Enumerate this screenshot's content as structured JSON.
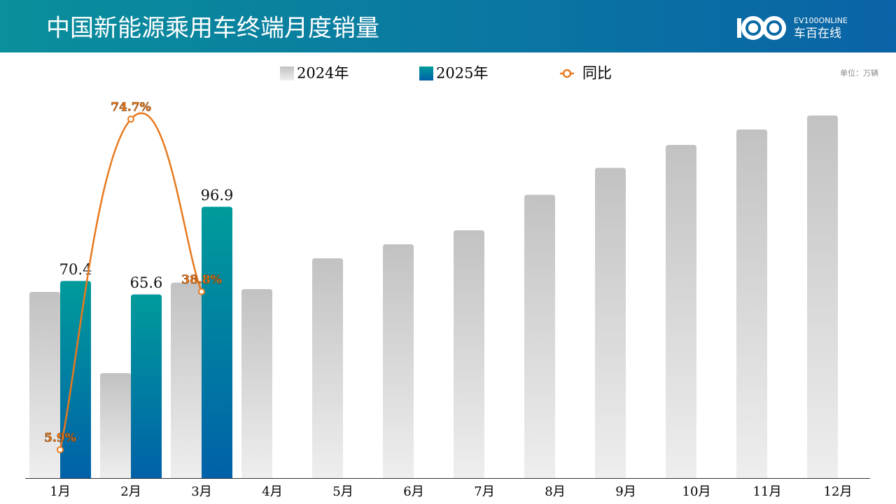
{
  "chart_data": {
    "type": "bar",
    "title": "中国新能源乘用车终端月度销量",
    "unit": "单位：万辆",
    "brand": {
      "en": "EV100ONLINE",
      "cn": "车百在线"
    },
    "categories": [
      "1月",
      "2月",
      "3月",
      "4月",
      "5月",
      "6月",
      "7月",
      "8月",
      "9月",
      "10月",
      "11月",
      "12月"
    ],
    "series": [
      {
        "name": "2024年",
        "color": [
          "#c2c2c2",
          "#eeeeee"
        ],
        "values": [
          66.5,
          37.5,
          69.8,
          67.5,
          78.5,
          83.5,
          88.5,
          101.2,
          110.8,
          119.0,
          124.5,
          129.5
        ]
      },
      {
        "name": "2025年",
        "color": [
          "#009b9b",
          "#0061a8"
        ],
        "values": [
          70.4,
          65.6,
          96.9,
          null,
          null,
          null,
          null,
          null,
          null,
          null,
          null,
          null
        ]
      },
      {
        "name": "同比",
        "type": "line",
        "axis": "y2",
        "color": "#e8791e",
        "values": [
          5.9,
          74.7,
          38.8,
          null,
          null,
          null,
          null,
          null,
          null,
          null,
          null,
          null
        ],
        "value_labels": [
          "5.9%",
          "74.7%",
          "38.8%",
          null,
          null,
          null,
          null,
          null,
          null,
          null,
          null,
          null
        ]
      }
    ]
  }
}
